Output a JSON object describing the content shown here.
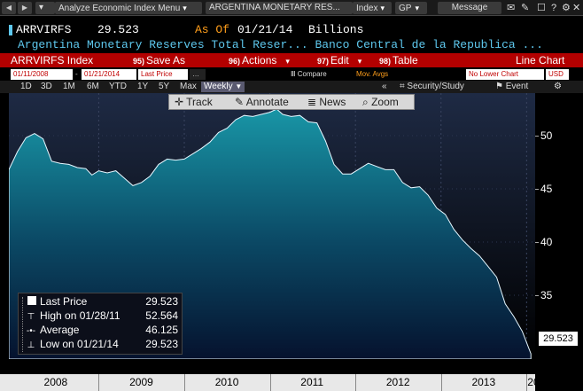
{
  "topbar": {
    "back": "◀",
    "fwd": "▶",
    "menu_label": "Analyze Economic Index Menu",
    "security_label": "ARGENTINA MONETARY RES...",
    "asset_label": "Index",
    "function_label": "GP",
    "message_label": "Message",
    "dd_glyph": "▾"
  },
  "header": {
    "ticker": "ARRVIRFS",
    "price": "29.523",
    "as_of_label": "As Of",
    "as_of_date": "01/21/14",
    "unit": "Billions",
    "description": "Argentina Monetary Reserves Total Reser... Banco Central de la Republica ..."
  },
  "redbar": {
    "index_name": "ARRVIRFS Index",
    "save": {
      "num": "95)",
      "label": "Save As"
    },
    "actions": {
      "num": "96)",
      "label": "Actions"
    },
    "edit": {
      "num": "97)",
      "label": "Edit"
    },
    "table": {
      "num": "98)",
      "label": "Table"
    },
    "chart_type": "Line Chart"
  },
  "inputs": {
    "start_date": "01/11/2008",
    "end_date": "01/21/2014",
    "field": "Last Price",
    "compare": "Compare",
    "mov_avgs": "Mov. Avgs",
    "lower_chart": "No Lower Chart",
    "currency": "USD"
  },
  "periods": {
    "items": [
      "1D",
      "3D",
      "1M",
      "6M",
      "YTD",
      "1Y",
      "5Y",
      "Max"
    ],
    "frequency": "Weekly",
    "security_study": "Security/Study",
    "event": "Event"
  },
  "chart_toolbar": {
    "track": "Track",
    "annotate": "Annotate",
    "news": "News",
    "zoom": "Zoom"
  },
  "legend": {
    "last_label": "Last Price",
    "last_value": "29.523",
    "high_label": "High on 01/28/11",
    "high_value": "52.564",
    "avg_label": "Average",
    "avg_value": "46.125",
    "low_label": "Low on 01/21/14",
    "low_value": "29.523"
  },
  "colors": {
    "fill_top": "#1a9fae",
    "fill_bottom": "#05122e",
    "bg_top": "#1e2a44",
    "bg_bottom": "#000000",
    "accent_red": "#b30000",
    "accent_orange": "#ff9e1b",
    "accent_cyan": "#5ec8ee"
  },
  "chart_data": {
    "type": "area",
    "ylim": [
      29,
      54
    ],
    "xlim": [
      2007.95,
      2014.1
    ],
    "y_ticks": [
      35,
      40,
      45,
      50
    ],
    "x_tick_labels": [
      "2008",
      "2009",
      "2010",
      "2011",
      "2012",
      "2013",
      "20"
    ],
    "last_value_label": "29.523",
    "series": [
      {
        "x": [
          2007.95,
          2008.05,
          2008.15,
          2008.25,
          2008.35,
          2008.45,
          2008.55,
          2008.65,
          2008.75,
          2008.85,
          2008.92,
          2009.0,
          2009.1,
          2009.2,
          2009.3,
          2009.4,
          2009.5,
          2009.6,
          2009.7,
          2009.8,
          2009.9,
          2010.0,
          2010.1,
          2010.2,
          2010.3,
          2010.4,
          2010.5,
          2010.6,
          2010.7,
          2010.8,
          2010.9,
          2011.0,
          2011.08,
          2011.15,
          2011.25,
          2011.35,
          2011.45,
          2011.55,
          2011.65,
          2011.75,
          2011.85,
          2011.95,
          2012.05,
          2012.15,
          2012.25,
          2012.35,
          2012.45,
          2012.55,
          2012.65,
          2012.75,
          2012.85,
          2012.95,
          2013.05,
          2013.15,
          2013.25,
          2013.35,
          2013.45,
          2013.55,
          2013.65,
          2013.75,
          2013.85,
          2013.95,
          2014.05
        ],
        "y": [
          46.8,
          48.5,
          49.8,
          50.2,
          49.7,
          47.6,
          47.4,
          47.3,
          47.0,
          46.9,
          46.3,
          46.7,
          46.5,
          46.7,
          46.0,
          45.3,
          45.6,
          46.2,
          47.3,
          47.8,
          47.7,
          47.8,
          48.3,
          48.8,
          49.4,
          50.3,
          50.7,
          51.5,
          51.9,
          51.8,
          52.0,
          52.2,
          52.5,
          52.0,
          51.8,
          51.9,
          51.3,
          51.2,
          49.5,
          47.3,
          46.4,
          46.4,
          46.9,
          47.4,
          47.1,
          46.8,
          46.8,
          45.6,
          45.1,
          45.2,
          44.4,
          43.2,
          42.6,
          41.2,
          40.2,
          39.4,
          38.7,
          37.7,
          36.7,
          34.2,
          33.0,
          31.6,
          29.5
        ]
      }
    ]
  }
}
